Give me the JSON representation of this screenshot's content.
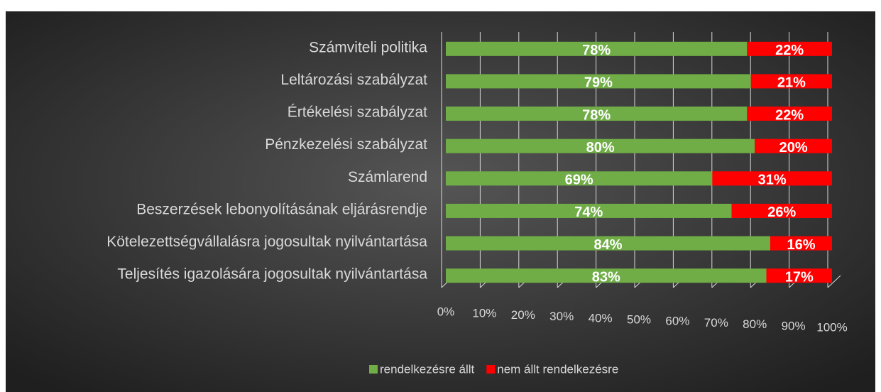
{
  "chart_data": {
    "type": "bar",
    "orientation": "horizontal",
    "stacked": true,
    "categories": [
      "Számviteli politika",
      "Leltározási szabályzat",
      "Értékelési szabályzat",
      "Pénzkezelési szabályzat",
      "Számlarend",
      "Beszerzések lebonyolításának eljárásrendje",
      "Kötelezettségvállalásra jogosultak nyilvántartása",
      "Teljesítés igazolására jogosultak nyilvántartása"
    ],
    "series": [
      {
        "name": "rendelkezésre állt",
        "color": "#70ad47",
        "values": [
          78,
          79,
          78,
          80,
          69,
          74,
          84,
          83
        ],
        "value_labels": [
          "78%",
          "79%",
          "78%",
          "80%",
          "69%",
          "74%",
          "84%",
          "83%"
        ]
      },
      {
        "name": "nem állt rendelkezésre",
        "color": "#ff0000",
        "values": [
          22,
          21,
          22,
          20,
          31,
          26,
          16,
          17
        ],
        "value_labels": [
          "22%",
          "21%",
          "22%",
          "20%",
          "31%",
          "26%",
          "16%",
          "17%"
        ]
      }
    ],
    "xlim": [
      0,
      100
    ],
    "xticks": [
      {
        "value": 0,
        "label": "0%"
      },
      {
        "value": 10,
        "label": "10%"
      },
      {
        "value": 20,
        "label": "20%"
      },
      {
        "value": 30,
        "label": "30%"
      },
      {
        "value": 40,
        "label": "40%"
      },
      {
        "value": 50,
        "label": "50%"
      },
      {
        "value": 60,
        "label": "60%"
      },
      {
        "value": 70,
        "label": "70%"
      },
      {
        "value": 80,
        "label": "80%"
      },
      {
        "value": 90,
        "label": "90%"
      },
      {
        "value": 100,
        "label": "100%"
      }
    ],
    "grid": true,
    "legend": "bottom"
  }
}
